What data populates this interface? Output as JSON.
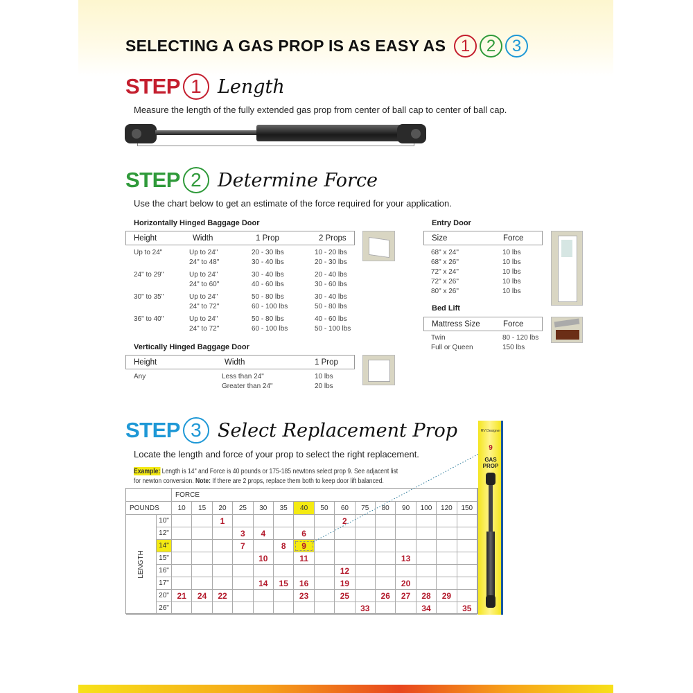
{
  "headline": {
    "text": "SELECTING A GAS PROP IS AS EASY AS",
    "n1": "1",
    "n2": "2",
    "n3": "3"
  },
  "colors": {
    "red": "#c41e2e",
    "green": "#2f9a3a",
    "blue": "#1e98d6",
    "highlight": "#f4ea12"
  },
  "step1": {
    "word": "STEP",
    "num": "1",
    "title": "Length",
    "desc": "Measure the length of the fully extended gas prop from center of ball cap to center of ball cap."
  },
  "step2": {
    "word": "STEP",
    "num": "2",
    "title": "Determine Force",
    "desc": "Use the chart below to get an estimate of the force required for your application."
  },
  "step3": {
    "word": "STEP",
    "num": "3",
    "title": "Select Replacement Prop",
    "desc": "Locate the length and force of your prop to select the right replacement.",
    "example_label": "Example:",
    "example_text": " Length is 14\" and  Force is 40 pounds or 175-185 newtons select prop 9. See adjacent list",
    "example_text2": "for newton conversion. ",
    "note_label": "Note:",
    "note_text": " If there are 2 props, replace them both to keep door lift balanced."
  },
  "horizontal": {
    "title": "Horizontally Hinged Baggage Door",
    "headers": [
      "Height",
      "Width",
      "1 Prop",
      "2 Props"
    ],
    "groups": [
      {
        "height": "Up to 24\"",
        "rows": [
          [
            "Up to 24\"",
            "20 - 30 lbs",
            "10 - 20 lbs"
          ],
          [
            "24\" to 48\"",
            "30 - 40 lbs",
            "20 - 30 lbs"
          ]
        ]
      },
      {
        "height": "24\" to 29\"",
        "rows": [
          [
            "Up to 24\"",
            "30 - 40 lbs",
            "20 - 40 lbs"
          ],
          [
            "24\" to 60\"",
            "40 - 60 lbs",
            "30 - 60 lbs"
          ]
        ]
      },
      {
        "height": "30\" to 35\"",
        "rows": [
          [
            "Up to 24\"",
            "50 - 80 lbs",
            "30 - 40 lbs"
          ],
          [
            "24\" to 72\"",
            "60 - 100 lbs",
            "50 - 80 lbs"
          ]
        ]
      },
      {
        "height": "36\" to 40\"",
        "rows": [
          [
            "Up to 24\"",
            "50 - 80 lbs",
            "40 - 60 lbs"
          ],
          [
            "24\" to 72\"",
            "60 - 100 lbs",
            "50 - 100 lbs"
          ]
        ]
      }
    ]
  },
  "vertical": {
    "title": "Vertically Hinged Baggage Door",
    "headers": [
      "Height",
      "Width",
      "1 Prop"
    ],
    "height": "Any",
    "rows": [
      [
        "Less than 24\"",
        "10 lbs"
      ],
      [
        "Greater than 24\"",
        "20 lbs"
      ]
    ]
  },
  "entry": {
    "title": "Entry Door",
    "headers": [
      "Size",
      "Force"
    ],
    "rows": [
      [
        "68\" x 24\"",
        "10 lbs"
      ],
      [
        "68\" x 26\"",
        "10 lbs"
      ],
      [
        "72\" x 24\"",
        "10 lbs"
      ],
      [
        "72\" x 26\"",
        "10 lbs"
      ],
      [
        "80\" x 26\"",
        "10 lbs"
      ]
    ]
  },
  "bed": {
    "title": "Bed Lift",
    "headers": [
      "Mattress Size",
      "Force"
    ],
    "rows": [
      [
        "Twin",
        "80 - 120 lbs"
      ],
      [
        "Full or Queen",
        "150 lbs"
      ]
    ]
  },
  "grid": {
    "force_label": "FORCE",
    "pounds_label": "POUNDS",
    "length_label": "LENGTH",
    "forces": [
      "10",
      "15",
      "20",
      "25",
      "30",
      "35",
      "40",
      "50",
      "60",
      "75",
      "80",
      "90",
      "100",
      "120",
      "150"
    ],
    "highlight_force": "40",
    "highlight_length": "14\"",
    "rows": [
      {
        "length": "10\"",
        "cells": [
          "",
          "",
          "1",
          "",
          "",
          "",
          "",
          "",
          "2",
          "",
          "",
          "",
          "",
          "",
          ""
        ]
      },
      {
        "length": "12\"",
        "cells": [
          "",
          "",
          "",
          "3",
          "4",
          "",
          "6",
          "",
          "",
          "",
          "",
          "",
          "",
          "",
          ""
        ]
      },
      {
        "length": "14\"",
        "cells": [
          "",
          "",
          "",
          "7",
          "",
          "8",
          "9",
          "",
          "",
          "",
          "",
          "",
          "",
          "",
          ""
        ]
      },
      {
        "length": "15\"",
        "cells": [
          "",
          "",
          "",
          "",
          "10",
          "",
          "11",
          "",
          "",
          "",
          "",
          "13",
          "",
          "",
          ""
        ]
      },
      {
        "length": "16\"",
        "cells": [
          "",
          "",
          "",
          "",
          "",
          "",
          "",
          "",
          "12",
          "",
          "",
          "",
          "",
          "",
          ""
        ]
      },
      {
        "length": "17\"",
        "cells": [
          "",
          "",
          "",
          "",
          "14",
          "15",
          "16",
          "",
          "19",
          "",
          "",
          "20",
          "",
          "",
          ""
        ]
      },
      {
        "length": "20\"",
        "cells": [
          "21",
          "24",
          "22",
          "",
          "",
          "",
          "23",
          "",
          "25",
          "",
          "26",
          "27",
          "28",
          "29",
          ""
        ]
      },
      {
        "length": "26\"",
        "cells": [
          "",
          "",
          "",
          "",
          "",
          "",
          "",
          "",
          "",
          "33",
          "",
          "",
          "34",
          "",
          "35"
        ]
      }
    ]
  },
  "package": {
    "brand": "RV Designer",
    "number": "9",
    "label1": "GAS",
    "label2": "PROP"
  }
}
